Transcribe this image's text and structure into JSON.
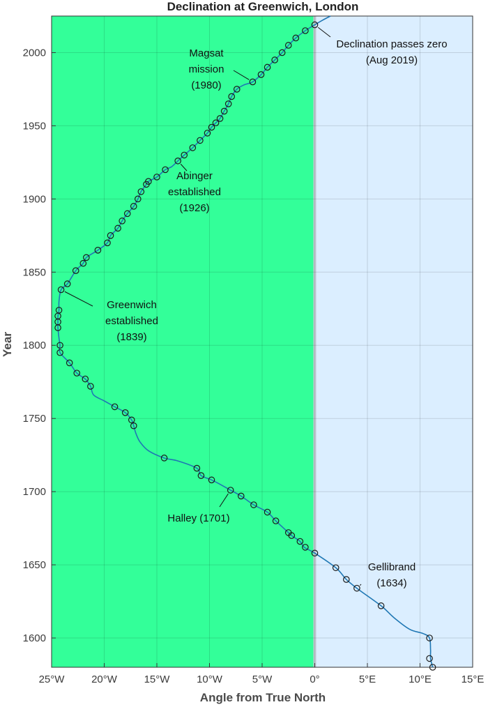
{
  "chart_data": {
    "type": "line",
    "title": "Declination at Greenwich, London",
    "xlabel": "Angle from True North",
    "ylabel": "Year",
    "xlim": [
      -25,
      15
    ],
    "ylim": [
      1580,
      2025
    ],
    "x_ticks": [
      -25,
      -20,
      -15,
      -10,
      -5,
      0,
      5,
      10,
      15
    ],
    "x_tick_labels": [
      "25°W",
      "20°W",
      "15°W",
      "10°W",
      "5°W",
      "0°",
      "5°E",
      "10°E",
      "15°E"
    ],
    "y_ticks": [
      1600,
      1650,
      1700,
      1750,
      1800,
      1850,
      1900,
      1950,
      2000
    ],
    "y_tick_labels": [
      "1600",
      "1650",
      "1700",
      "1750",
      "1800",
      "1850",
      "1900",
      "1950",
      "2000"
    ],
    "grid": true,
    "regions": [
      {
        "name": "west",
        "x_range": [
          -25,
          0
        ],
        "color": "#33ff99"
      },
      {
        "name": "east",
        "x_range": [
          0,
          15
        ],
        "color": "#dbeeff"
      }
    ],
    "zero_line_color": "#c0c8d0",
    "line_color": "#1f77b4",
    "marker_color": "#1a1a1a",
    "curve": [
      [
        11.2,
        1580
      ],
      [
        11.0,
        1586
      ],
      [
        11.0,
        1592
      ],
      [
        10.9,
        1600
      ],
      [
        10.3,
        1603
      ],
      [
        9.0,
        1606
      ],
      [
        7.5,
        1614
      ],
      [
        6.3,
        1622
      ],
      [
        4.0,
        1634
      ],
      [
        3.0,
        1640
      ],
      [
        2.0,
        1648
      ],
      [
        0.0,
        1658
      ],
      [
        -1.0,
        1662
      ],
      [
        -1.4,
        1666
      ],
      [
        -2.2,
        1670
      ],
      [
        -2.5,
        1672
      ],
      [
        -3.7,
        1680
      ],
      [
        -4.5,
        1686
      ],
      [
        -5.8,
        1691
      ],
      [
        -7.0,
        1697
      ],
      [
        -8.0,
        1701
      ],
      [
        -9.0,
        1705
      ],
      [
        -9.8,
        1708
      ],
      [
        -10.8,
        1711
      ],
      [
        -11.2,
        1716
      ],
      [
        -13.0,
        1721
      ],
      [
        -14.3,
        1723
      ],
      [
        -15.8,
        1728
      ],
      [
        -16.6,
        1734
      ],
      [
        -17.0,
        1740
      ],
      [
        -17.2,
        1745
      ],
      [
        -17.4,
        1749
      ],
      [
        -18.0,
        1754
      ],
      [
        -19.0,
        1758
      ],
      [
        -20.0,
        1762
      ],
      [
        -21.0,
        1766
      ],
      [
        -21.3,
        1772
      ],
      [
        -21.8,
        1777
      ],
      [
        -22.6,
        1781
      ],
      [
        -23.3,
        1788
      ],
      [
        -24.2,
        1795
      ],
      [
        -24.2,
        1800
      ],
      [
        -24.3,
        1805
      ],
      [
        -24.4,
        1812
      ],
      [
        -24.4,
        1816
      ],
      [
        -24.4,
        1820
      ],
      [
        -24.3,
        1824
      ],
      [
        -24.3,
        1830
      ],
      [
        -24.1,
        1838
      ],
      [
        -23.5,
        1842
      ],
      [
        -22.7,
        1851
      ],
      [
        -22.0,
        1856
      ],
      [
        -21.7,
        1860
      ],
      [
        -20.6,
        1865
      ],
      [
        -19.7,
        1870
      ],
      [
        -19.4,
        1875
      ],
      [
        -18.7,
        1880
      ],
      [
        -18.3,
        1885
      ],
      [
        -17.8,
        1890
      ],
      [
        -17.2,
        1895
      ],
      [
        -16.8,
        1900
      ],
      [
        -16.5,
        1905
      ],
      [
        -16.0,
        1910
      ],
      [
        -15.8,
        1912
      ],
      [
        -15.0,
        1915
      ],
      [
        -14.2,
        1920
      ],
      [
        -13.6,
        1922
      ],
      [
        -13.0,
        1926
      ],
      [
        -12.4,
        1930
      ],
      [
        -11.6,
        1935
      ],
      [
        -10.9,
        1940
      ],
      [
        -10.2,
        1945
      ],
      [
        -9.8,
        1949
      ],
      [
        -9.4,
        1952
      ],
      [
        -9.0,
        1955
      ],
      [
        -8.6,
        1960
      ],
      [
        -8.2,
        1965
      ],
      [
        -7.9,
        1970
      ],
      [
        -7.4,
        1975
      ],
      [
        -6.7,
        1978
      ],
      [
        -5.9,
        1980
      ],
      [
        -5.1,
        1985
      ],
      [
        -4.5,
        1990
      ],
      [
        -3.8,
        1995
      ],
      [
        -3.1,
        2000
      ],
      [
        -2.5,
        2005
      ],
      [
        -1.8,
        2010
      ],
      [
        -0.9,
        2015
      ],
      [
        0.0,
        2019
      ],
      [
        0.7,
        2022
      ],
      [
        1.5,
        2025
      ]
    ],
    "points": [
      [
        11.2,
        1580
      ],
      [
        10.9,
        1586
      ],
      [
        10.9,
        1600
      ],
      [
        6.3,
        1622
      ],
      [
        4.0,
        1634
      ],
      [
        3.0,
        1640
      ],
      [
        2.0,
        1648
      ],
      [
        0.0,
        1658
      ],
      [
        -0.9,
        1662
      ],
      [
        -1.4,
        1666
      ],
      [
        -2.2,
        1670
      ],
      [
        -2.5,
        1672
      ],
      [
        -3.7,
        1680
      ],
      [
        -4.5,
        1686
      ],
      [
        -5.8,
        1691
      ],
      [
        -7.0,
        1697
      ],
      [
        -8.0,
        1701
      ],
      [
        -9.8,
        1708
      ],
      [
        -10.8,
        1711
      ],
      [
        -11.2,
        1716
      ],
      [
        -14.3,
        1723
      ],
      [
        -17.2,
        1745
      ],
      [
        -17.4,
        1749
      ],
      [
        -18.0,
        1754
      ],
      [
        -19.0,
        1758
      ],
      [
        -21.3,
        1772
      ],
      [
        -21.8,
        1777
      ],
      [
        -22.6,
        1781
      ],
      [
        -23.3,
        1788
      ],
      [
        -24.2,
        1795
      ],
      [
        -24.2,
        1800
      ],
      [
        -24.4,
        1812
      ],
      [
        -24.4,
        1816
      ],
      [
        -24.4,
        1820
      ],
      [
        -24.3,
        1824
      ],
      [
        -24.1,
        1838
      ],
      [
        -23.5,
        1842
      ],
      [
        -22.7,
        1851
      ],
      [
        -22.0,
        1856
      ],
      [
        -21.7,
        1860
      ],
      [
        -20.6,
        1865
      ],
      [
        -19.7,
        1870
      ],
      [
        -19.4,
        1875
      ],
      [
        -18.7,
        1880
      ],
      [
        -18.3,
        1885
      ],
      [
        -17.8,
        1890
      ],
      [
        -17.2,
        1895
      ],
      [
        -16.8,
        1900
      ],
      [
        -16.5,
        1905
      ],
      [
        -16.0,
        1910
      ],
      [
        -15.8,
        1912
      ],
      [
        -15.0,
        1915
      ],
      [
        -14.2,
        1920
      ],
      [
        -13.0,
        1926
      ],
      [
        -12.4,
        1930
      ],
      [
        -11.6,
        1935
      ],
      [
        -10.9,
        1940
      ],
      [
        -10.2,
        1945
      ],
      [
        -9.8,
        1949
      ],
      [
        -9.4,
        1952
      ],
      [
        -9.0,
        1955
      ],
      [
        -8.6,
        1960
      ],
      [
        -8.2,
        1965
      ],
      [
        -7.9,
        1970
      ],
      [
        -7.4,
        1975
      ],
      [
        -5.9,
        1980
      ],
      [
        -5.1,
        1985
      ],
      [
        -4.5,
        1990
      ],
      [
        -3.8,
        1995
      ],
      [
        -3.1,
        2000
      ],
      [
        -2.5,
        2005
      ],
      [
        -1.8,
        2010
      ],
      [
        -0.9,
        2015
      ],
      [
        0.0,
        2019
      ]
    ],
    "annotations": [
      {
        "name": "declination-zero",
        "lines": [
          "Declination passes zero",
          "(Aug 2019)"
        ],
        "point": [
          0.0,
          2019
        ]
      },
      {
        "name": "magsat",
        "lines": [
          "Magsat",
          "mission",
          "(1980)"
        ],
        "point": [
          -5.9,
          1980
        ]
      },
      {
        "name": "abinger",
        "lines": [
          "Abinger",
          "established",
          "(1926)"
        ],
        "point": [
          -13.0,
          1926
        ]
      },
      {
        "name": "greenwich",
        "lines": [
          "Greenwich",
          "established",
          "(1839)"
        ],
        "point": [
          -24.1,
          1838
        ]
      },
      {
        "name": "halley",
        "lines": [
          "Halley (1701)"
        ],
        "point": [
          -8.0,
          1701
        ]
      },
      {
        "name": "gellibrand",
        "lines": [
          "Gellibrand",
          "(1634)"
        ],
        "point": [
          4.0,
          1634
        ]
      }
    ]
  }
}
